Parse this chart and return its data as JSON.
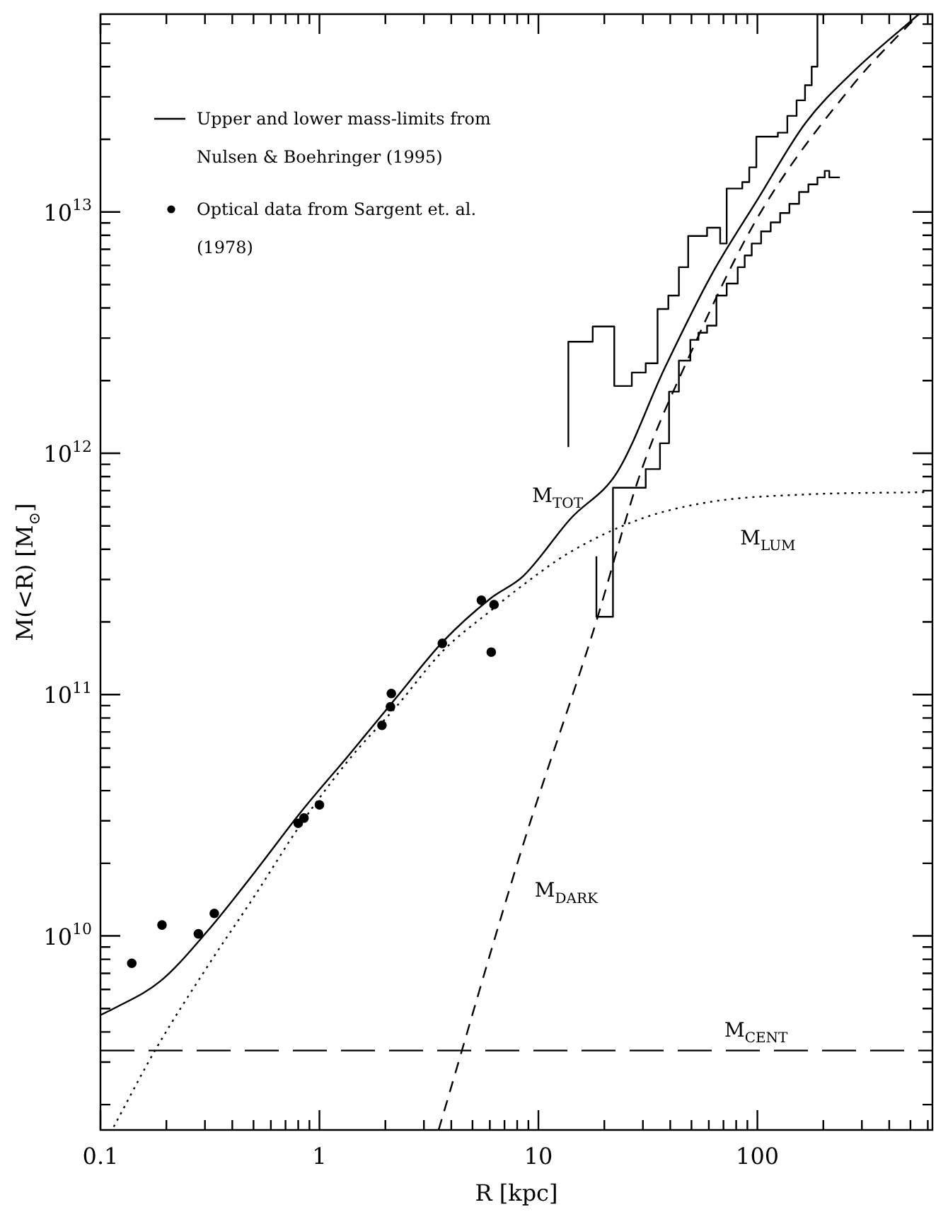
{
  "chart_data": {
    "type": "line",
    "xlabel": "R [kpc]",
    "ylabel": "M(<R) [M$_{⊙}$]",
    "log": "xy",
    "legend": "top left",
    "xlim": [
      0.1,
      630
    ],
    "ylim": [
      1570000000.0,
      66000000000000.0
    ],
    "xticks": [
      {
        "value": 0.1,
        "label": "0.1"
      },
      {
        "value": 0.2,
        "label": null
      },
      {
        "value": 0.3,
        "label": null
      },
      {
        "value": 0.4,
        "label": null
      },
      {
        "value": 0.5,
        "label": null
      },
      {
        "value": 0.6,
        "label": null
      },
      {
        "value": 0.7,
        "label": null
      },
      {
        "value": 0.8,
        "label": null
      },
      {
        "value": 0.9,
        "label": null
      },
      1,
      {
        "value": 2,
        "label": null
      },
      {
        "value": 3,
        "label": null
      },
      {
        "value": 4,
        "label": null
      },
      {
        "value": 5,
        "label": null
      },
      {
        "value": 6,
        "label": null
      },
      {
        "value": 7,
        "label": null
      },
      {
        "value": 8,
        "label": null
      },
      {
        "value": 9,
        "label": null
      },
      10,
      {
        "value": 20,
        "label": null
      },
      {
        "value": 30,
        "label": null
      },
      {
        "value": 40,
        "label": null
      },
      {
        "value": 50,
        "label": null
      },
      {
        "value": 60,
        "label": null
      },
      {
        "value": 70,
        "label": null
      },
      {
        "value": 80,
        "label": null
      },
      {
        "value": 90,
        "label": null
      },
      100,
      {
        "value": 200,
        "label": null
      },
      {
        "value": 300,
        "label": null
      },
      {
        "value": 400,
        "label": null
      },
      {
        "value": 500,
        "label": null
      },
      {
        "value": 600,
        "label": null
      }
    ],
    "yticks": [
      {
        "value": 2000000000.0,
        "label": null
      },
      {
        "value": 3000000000.0,
        "label": null
      },
      {
        "value": 4000000000.0,
        "label": null
      },
      {
        "value": 5000000000.0,
        "label": null
      },
      {
        "value": 6000000000.0,
        "label": null
      },
      {
        "value": 7000000000.0,
        "label": null
      },
      {
        "value": 8000000000.0,
        "label": null
      },
      {
        "value": 9000000000.0,
        "label": null
      },
      {
        "value": 10000000000.0,
        "label": "10$^{10}$"
      },
      {
        "value": 20000000000.0,
        "label": null
      },
      {
        "value": 30000000000.0,
        "label": null
      },
      {
        "value": 40000000000.0,
        "label": null
      },
      {
        "value": 50000000000.0,
        "label": null
      },
      {
        "value": 60000000000.0,
        "label": null
      },
      {
        "value": 70000000000.0,
        "label": null
      },
      {
        "value": 80000000000.0,
        "label": null
      },
      {
        "value": 90000000000.0,
        "label": null
      },
      {
        "value": 100000000000.0,
        "label": "10$^{11}$"
      },
      {
        "value": 200000000000.0,
        "label": null
      },
      {
        "value": 300000000000.0,
        "label": null
      },
      {
        "value": 400000000000.0,
        "label": null
      },
      {
        "value": 500000000000.0,
        "label": null
      },
      {
        "value": 600000000000.0,
        "label": null
      },
      {
        "value": 700000000000.0,
        "label": null
      },
      {
        "value": 800000000000.0,
        "label": null
      },
      {
        "value": 900000000000.0,
        "label": null
      },
      {
        "value": 1000000000000.0,
        "label": "10$^{12}$"
      },
      {
        "value": 2000000000000.0,
        "label": null
      },
      {
        "value": 3000000000000.0,
        "label": null
      },
      {
        "value": 4000000000000.0,
        "label": null
      },
      {
        "value": 5000000000000.0,
        "label": null
      },
      {
        "value": 6000000000000.0,
        "label": null
      },
      {
        "value": 7000000000000.0,
        "label": null
      },
      {
        "value": 8000000000000.0,
        "label": null
      },
      {
        "value": 9000000000000.0,
        "label": null
      },
      {
        "value": 10000000000000.0,
        "label": "10$^{13}$"
      },
      {
        "value": 20000000000000.0,
        "label": null
      },
      {
        "value": 30000000000000.0,
        "label": null
      },
      {
        "value": 40000000000000.0,
        "label": null
      },
      {
        "value": 50000000000000.0,
        "label": null
      },
      {
        "value": 60000000000000.0,
        "label": null
      }
    ],
    "series": [
      {
        "type": "step",
        "name": "Upper and lower mass-limits from Nulsen & Boehringer (1995)",
        "color": "#000000",
        "marker": "none",
        "line_style": "solid",
        "x": [
          13.7,
          17.7,
          22.2,
          26.7,
          30.9,
          35,
          39.2,
          43.8,
          48.3,
          58.9,
          67.6,
          72.4,
          85.3,
          91.8,
          98.9,
          124,
          137,
          151,
          165,
          177,
          188,
          206
        ],
        "values": [
          1060000000000.0,
          2900000000000.0,
          3350000000000.0,
          1900000000000.0,
          2160000000000.0,
          2360000000000.0,
          3960000000000.0,
          4500000000000.0,
          5900000000000.0,
          7950000000000.0,
          8600000000000.0,
          7400000000000.0,
          12500000000000.0,
          13300000000000.0,
          15300000000000.0,
          20500000000000.0,
          21300000000000.0,
          25000000000000.0,
          29000000000000.0,
          33500000000000.0,
          40000000000000.0,
          66000000000000.0
        ]
      },
      {
        "type": "step",
        "color": "#000000",
        "marker": "none",
        "line_style": "solid",
        "x": [
          18.4,
          21.9,
          30.9,
          35.9,
          39.5,
          43.8,
          49.4,
          53.8,
          58.9,
          65,
          72.4,
          81.3,
          87.5,
          94.2,
          104,
          115,
          127,
          140,
          155,
          171,
          188,
          203,
          213,
          224,
          238
        ],
        "values": [
          374000000000.0,
          210000000000.0,
          720000000000.0,
          860000000000.0,
          1100000000000.0,
          1800000000000.0,
          2420000000000.0,
          2950000000000.0,
          3160000000000.0,
          3380000000000.0,
          4500000000000.0,
          5050000000000.0,
          5900000000000.0,
          6600000000000.0,
          7400000000000.0,
          8300000000000.0,
          9050000000000.0,
          9900000000000.0,
          10800000000000.0,
          12100000000000.0,
          13000000000000.0,
          13900000000000.0,
          14800000000000.0,
          13900000000000.0,
          13900000000000.0
        ]
      },
      {
        "type": "scatter",
        "name": "Optical data from Sargent et. al. (1978)",
        "color": "#000000",
        "marker": "circle",
        "x": [
          0.139,
          0.191,
          0.28,
          0.331,
          0.8,
          0.85,
          1.0,
          1.93,
          2.11,
          2.13,
          3.64,
          5.49,
          6.27,
          6.09
        ],
        "values": [
          7700000000.0,
          11100000000.0,
          10200000000.0,
          12400000000.0,
          29300000000.0,
          30800000000.0,
          34900000000.0,
          74600000000.0,
          89000000000.0,
          101000000000.0,
          163000000000.0,
          246000000000.0,
          236000000000.0,
          150000000000.0
        ]
      },
      {
        "name": "M$_{TOT}$",
        "color": "#000000",
        "marker": "none",
        "line_style": "solid",
        "x": [
          0.1,
          0.115,
          0.188,
          0.309,
          0.507,
          0.832,
          1.37,
          2.24,
          3.67,
          6.03,
          8.53,
          14,
          23,
          37.7,
          61.8,
          101,
          166,
          273,
          546
        ],
        "values": [
          4700000000.0,
          5000000000.0,
          6500000000.0,
          10500000000.0,
          18400000000.0,
          33000000000.0,
          56500000000.0,
          97000000000.0,
          166000000000.0,
          250000000000.0,
          310000000000.0,
          535000000000.0,
          840000000000.0,
          2250000000000.0,
          5500000000000.0,
          11400000000000.0,
          23400000000000.0,
          38000000000000.0,
          66000000000000.0
        ]
      },
      {
        "name": "M$_{LUM}$",
        "color": "#000000",
        "marker": "none",
        "line_style": "dotted",
        "x": [
          0.115,
          0.179,
          0.309,
          0.507,
          0.832,
          1.37,
          2.24,
          3.67,
          6.03,
          8.53,
          14,
          29.4,
          61.8,
          166,
          603
        ],
        "values": [
          1620000000.0,
          3400000000.0,
          7500000000.0,
          14700000000.0,
          29500000000.0,
          54000000000.0,
          89000000000.0,
          152000000000.0,
          222000000000.0,
          285000000000.0,
          390000000000.0,
          535000000000.0,
          630000000000.0,
          675000000000.0,
          690000000000.0
        ]
      },
      {
        "name": "M$_{DARK}$",
        "color": "#000000",
        "marker": "none",
        "line_style": "dashed",
        "x": [
          3.5,
          8.53,
          17.9,
          29.4,
          48.3,
          101,
          273,
          546
        ],
        "values": [
          1570000000.0,
          24000000000.0,
          186000000000.0,
          840000000000.0,
          2470000000000.0,
          9600000000000.0,
          33600000000000.0,
          66000000000000.0
        ]
      }
    ],
    "ref_lines": [
      {
        "axis": "y",
        "value": 3350000000.0,
        "label": "M$_{CENT}$",
        "color": "#000000",
        "line_style": "dashed"
      }
    ]
  }
}
